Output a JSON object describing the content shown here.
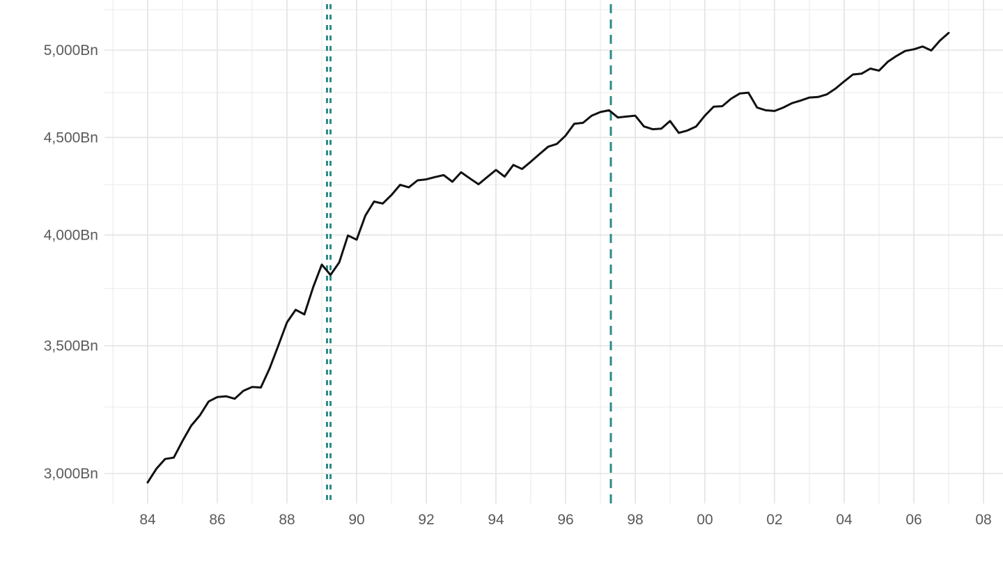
{
  "chart_data": {
    "type": "line",
    "title": "",
    "xlabel": "",
    "ylabel": "",
    "unit": "Bn",
    "y_scale": "log10",
    "x_range": [
      83,
      108.6
    ],
    "grid": "on",
    "legend": "none",
    "x": [
      84.0,
      84.25,
      84.5,
      84.75,
      85.0,
      85.25,
      85.5,
      85.75,
      86.0,
      86.25,
      86.5,
      86.75,
      87.0,
      87.25,
      87.5,
      87.75,
      88.0,
      88.25,
      88.5,
      88.75,
      89.0,
      89.25,
      89.5,
      89.75,
      90.0,
      90.25,
      90.5,
      90.75,
      91.0,
      91.25,
      91.5,
      91.75,
      92.0,
      92.25,
      92.5,
      92.75,
      93.0,
      93.25,
      93.5,
      93.75,
      94.0,
      94.25,
      94.5,
      94.75,
      95.0,
      95.25,
      95.5,
      95.75,
      96.0,
      96.25,
      96.5,
      96.75,
      97.0,
      97.25,
      97.5,
      97.75,
      98.0,
      98.25,
      98.5,
      98.75,
      99.0,
      99.25,
      99.5,
      99.75,
      100.0,
      100.25,
      100.5,
      100.75,
      101.0,
      101.25,
      101.5,
      101.75,
      102.0,
      102.25,
      102.5,
      102.75,
      103.0,
      103.25,
      103.5,
      103.75,
      104.0,
      104.25,
      104.5,
      104.75,
      105.0,
      105.25,
      105.5,
      105.75,
      106.0,
      106.25,
      106.5,
      106.75,
      107.0
    ],
    "series": [
      {
        "name": "quarterly-level-bn",
        "color": "#111111",
        "values": [
          2968,
          3017,
          3053,
          3058,
          3120,
          3178,
          3218,
          3272,
          3290,
          3293,
          3283,
          3315,
          3330,
          3328,
          3405,
          3500,
          3600,
          3655,
          3635,
          3755,
          3860,
          3812,
          3870,
          3998,
          3978,
          4095,
          4165,
          4155,
          4198,
          4250,
          4237,
          4273,
          4278,
          4290,
          4300,
          4266,
          4315,
          4283,
          4253,
          4290,
          4327,
          4292,
          4353,
          4332,
          4370,
          4410,
          4450,
          4465,
          4510,
          4575,
          4580,
          4620,
          4640,
          4650,
          4610,
          4615,
          4620,
          4560,
          4545,
          4548,
          4590,
          4525,
          4538,
          4560,
          4620,
          4670,
          4673,
          4715,
          4745,
          4750,
          4665,
          4650,
          4646,
          4665,
          4690,
          4705,
          4722,
          4725,
          4740,
          4773,
          4815,
          4855,
          4860,
          4890,
          4878,
          4930,
          4965,
          4995,
          5005,
          5022,
          4998,
          5058,
          5105
        ]
      }
    ],
    "y_ticks": [
      {
        "label": "5,000Bn",
        "value": 5000
      },
      {
        "label": "4,500Bn",
        "value": 4500
      },
      {
        "label": "4,000Bn",
        "value": 4000
      },
      {
        "label": "3,500Bn",
        "value": 3500
      },
      {
        "label": "3,000Bn",
        "value": 3000
      }
    ],
    "y_minor_ticks": [
      5250,
      4750,
      4250,
      3750,
      3250
    ],
    "x_ticks": [
      {
        "label": "84",
        "year": 84
      },
      {
        "label": "86",
        "year": 86
      },
      {
        "label": "88",
        "year": 88
      },
      {
        "label": "90",
        "year": 90
      },
      {
        "label": "92",
        "year": 92
      },
      {
        "label": "94",
        "year": 94
      },
      {
        "label": "96",
        "year": 96
      },
      {
        "label": "98",
        "year": 98
      },
      {
        "label": "00",
        "year": 100
      },
      {
        "label": "02",
        "year": 102
      },
      {
        "label": "04",
        "year": 104
      },
      {
        "label": "06",
        "year": 106
      },
      {
        "label": "08",
        "year": 108
      }
    ],
    "x_minor_years": [
      83,
      85,
      87,
      89,
      91,
      93,
      95,
      97,
      99,
      101,
      103,
      105,
      107
    ],
    "reference_lines": [
      {
        "name": "event-dashed-line-1989a",
        "year": 89.15,
        "style": "dashed",
        "dash": "7 8"
      },
      {
        "name": "event-dashed-line-1989b",
        "year": 89.25,
        "style": "dashed",
        "dash": "7 8"
      },
      {
        "name": "event-dashed-line-1997",
        "year": 97.3,
        "style": "dashed",
        "dash": "13 9"
      }
    ],
    "colors": {
      "line": "#111111",
      "reference": "#2b8b87",
      "grid_major": "#e3e3e3",
      "grid_minor": "#efefef",
      "axis_text": "#595959",
      "background": "#ffffff"
    }
  }
}
